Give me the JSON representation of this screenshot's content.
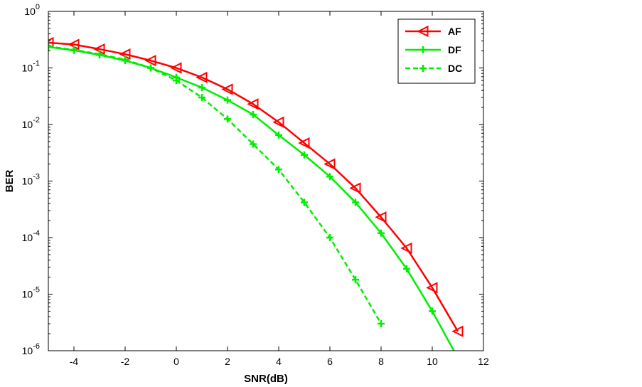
{
  "chart_data": {
    "type": "line",
    "title": "",
    "xlabel": "SNR(dB)",
    "ylabel": "BER",
    "xlim": [
      -5,
      12
    ],
    "ylim": [
      1e-06,
      1
    ],
    "yscale": "log",
    "grid": false,
    "legend_position": "top-right",
    "x_ticks": [
      {
        "value": -4,
        "label": "-4"
      },
      {
        "value": -2,
        "label": "-2"
      },
      {
        "value": 0,
        "label": "0"
      },
      {
        "value": 2,
        "label": "2"
      },
      {
        "value": 4,
        "label": "4"
      },
      {
        "value": 6,
        "label": "6"
      },
      {
        "value": 8,
        "label": "8"
      },
      {
        "value": 10,
        "label": "10"
      },
      {
        "value": 12,
        "label": "12"
      }
    ],
    "y_ticks": [
      {
        "value": 1,
        "base": "10",
        "exp": "0"
      },
      {
        "value": 0.1,
        "base": "10",
        "exp": "-1"
      },
      {
        "value": 0.01,
        "base": "10",
        "exp": "-2"
      },
      {
        "value": 0.001,
        "base": "10",
        "exp": "-3"
      },
      {
        "value": 0.0001,
        "base": "10",
        "exp": "-4"
      },
      {
        "value": 1e-05,
        "base": "10",
        "exp": "-5"
      },
      {
        "value": 1e-06,
        "base": "10",
        "exp": "-6"
      }
    ],
    "series": [
      {
        "name": "AF",
        "color": "#ff0000",
        "line_style": "solid",
        "marker": "triangle-left",
        "points": [
          [
            -5,
            0.28
          ],
          [
            -4,
            0.26
          ],
          [
            -3,
            0.215
          ],
          [
            -2,
            0.175
          ],
          [
            -1,
            0.135
          ],
          [
            0,
            0.1
          ],
          [
            1,
            0.068
          ],
          [
            2,
            0.042
          ],
          [
            3,
            0.023
          ],
          [
            4,
            0.011
          ],
          [
            5,
            0.0047
          ],
          [
            6,
            0.002
          ],
          [
            7,
            0.00075
          ],
          [
            8,
            0.00023
          ],
          [
            9,
            6.5e-05
          ],
          [
            10,
            1.3e-05
          ],
          [
            11,
            2.2e-06
          ]
        ]
      },
      {
        "name": "DF",
        "color": "#00ee00",
        "line_style": "solid",
        "marker": "plus",
        "points": [
          [
            -5,
            0.235
          ],
          [
            -4,
            0.205
          ],
          [
            -3,
            0.17
          ],
          [
            -2,
            0.135
          ],
          [
            -1,
            0.1
          ],
          [
            0,
            0.068
          ],
          [
            1,
            0.045
          ],
          [
            2,
            0.027
          ],
          [
            3,
            0.015
          ],
          [
            4,
            0.0065
          ],
          [
            5,
            0.0029
          ],
          [
            6,
            0.0012
          ],
          [
            7,
            0.00042
          ],
          [
            8,
            0.00012
          ],
          [
            9,
            2.8e-05
          ],
          [
            10,
            5e-06
          ],
          [
            10.9,
            9e-07
          ]
        ]
      },
      {
        "name": "DC",
        "color": "#00ee00",
        "line_style": "dashed",
        "marker": "plus",
        "points": [
          [
            -5,
            0.24
          ],
          [
            -4,
            0.21
          ],
          [
            -3,
            0.175
          ],
          [
            -2,
            0.14
          ],
          [
            -1,
            0.1
          ],
          [
            0,
            0.06
          ],
          [
            1,
            0.03
          ],
          [
            2,
            0.0125
          ],
          [
            3,
            0.0045
          ],
          [
            4,
            0.0016
          ],
          [
            5,
            0.00042
          ],
          [
            6,
            0.0001
          ],
          [
            7,
            1.8e-05
          ],
          [
            8,
            3e-06
          ]
        ]
      }
    ]
  }
}
